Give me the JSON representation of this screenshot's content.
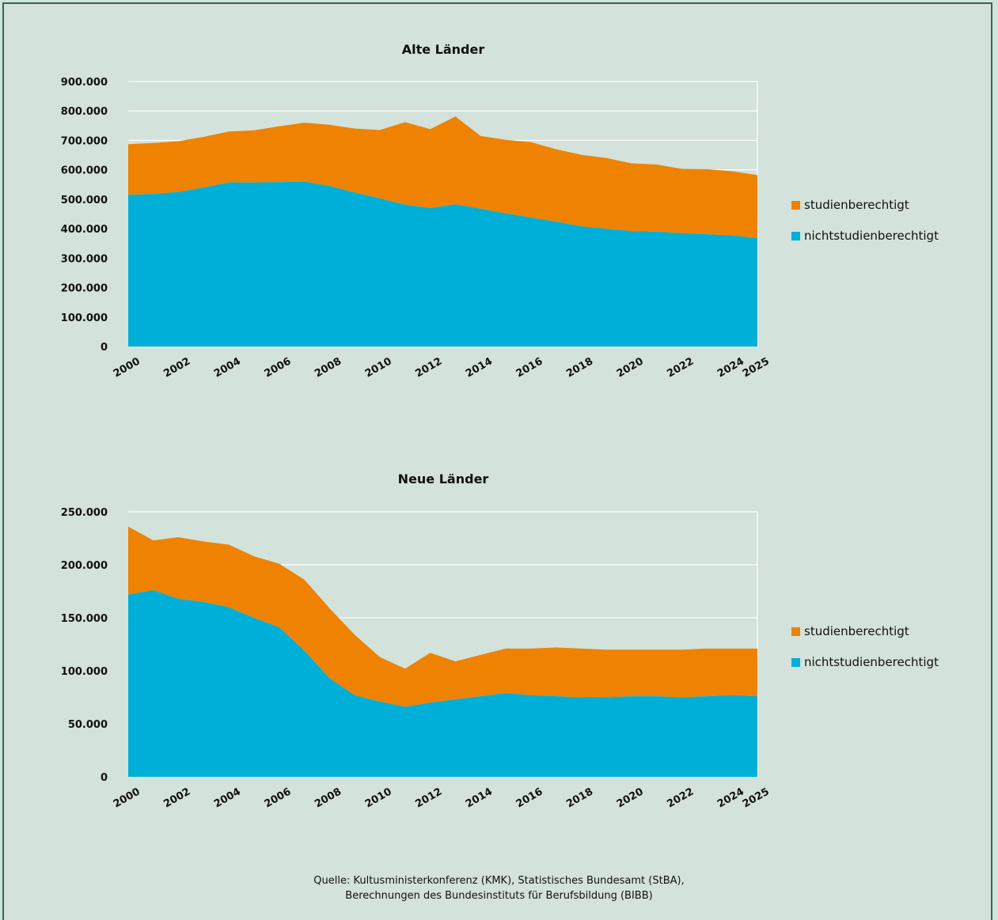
{
  "colors": {
    "studienberechtigt": "#ef8200",
    "nichtstudienberechtigt": "#00afd7",
    "background": "#d3e2da",
    "frame": "#2c6b4f"
  },
  "chart_data": [
    {
      "type": "area",
      "stacked": true,
      "title": "Alte Länder",
      "x": [
        2000,
        2001,
        2002,
        2003,
        2004,
        2005,
        2006,
        2007,
        2008,
        2009,
        2010,
        2011,
        2012,
        2013,
        2014,
        2015,
        2016,
        2017,
        2018,
        2019,
        2020,
        2021,
        2022,
        2023,
        2024,
        2025
      ],
      "x_tick_labels": [
        "2000",
        "2002",
        "2004",
        "2006",
        "2008",
        "2010",
        "2012",
        "2014",
        "2016",
        "2018",
        "2020",
        "2022",
        "2024",
        "2025"
      ],
      "y_tick_labels": [
        "900.000",
        "800.000",
        "700.000",
        "600.000",
        "500.000",
        "400.000",
        "300.000",
        "200.000",
        "100.000",
        "0"
      ],
      "ylim": [
        0,
        900000
      ],
      "legend_position": "right",
      "grid": true,
      "series": [
        {
          "name": "nichtstudienberechtigt",
          "values": [
            515000,
            518000,
            525000,
            540000,
            557000,
            557000,
            558000,
            560000,
            545000,
            523000,
            503000,
            482000,
            470000,
            483000,
            468000,
            452000,
            438000,
            424000,
            408000,
            400000,
            392000,
            390000,
            385000,
            381000,
            377000,
            368000
          ]
        },
        {
          "name": "studienberechtigt",
          "values": [
            172000,
            173000,
            172000,
            172000,
            173000,
            177000,
            190000,
            200000,
            208000,
            217000,
            232000,
            280000,
            268000,
            298000,
            247000,
            250000,
            256000,
            246000,
            243000,
            240000,
            230000,
            228000,
            218000,
            221000,
            218000,
            214000
          ]
        }
      ]
    },
    {
      "type": "area",
      "stacked": true,
      "title": "Neue Länder",
      "x": [
        2000,
        2001,
        2002,
        2003,
        2004,
        2005,
        2006,
        2007,
        2008,
        2009,
        2010,
        2011,
        2012,
        2013,
        2014,
        2015,
        2016,
        2017,
        2018,
        2019,
        2020,
        2021,
        2022,
        2023,
        2024,
        2025
      ],
      "x_tick_labels": [
        "2000",
        "2002",
        "2004",
        "2006",
        "2008",
        "2010",
        "2012",
        "2014",
        "2016",
        "2018",
        "2020",
        "2022",
        "2024",
        "2025"
      ],
      "y_tick_labels": [
        "250.000",
        "200.000",
        "150.000",
        "100.000",
        "50.000",
        "0"
      ],
      "ylim": [
        0,
        250000
      ],
      "legend_position": "right",
      "grid": true,
      "series": [
        {
          "name": "nichtstudienberechtigt",
          "values": [
            172000,
            176000,
            168000,
            165000,
            160000,
            150000,
            141000,
            119000,
            93000,
            77000,
            71000,
            66000,
            70000,
            73000,
            76000,
            79000,
            77000,
            76000,
            75000,
            75000,
            76000,
            76000,
            75000,
            76000,
            77000,
            76000
          ]
        },
        {
          "name": "studienberechtigt",
          "values": [
            64000,
            47000,
            58000,
            57000,
            59000,
            58000,
            60000,
            67000,
            66000,
            57000,
            42000,
            36000,
            47000,
            36000,
            39000,
            42000,
            44000,
            46000,
            46000,
            45000,
            44000,
            44000,
            45000,
            45000,
            44000,
            45000
          ]
        }
      ]
    }
  ],
  "source": {
    "line1": "Quelle: Kultusministerkonferenz (KMK), Statistisches Bundesamt (StBA),",
    "line2": "Berechnungen des Bundesinstituts für Berufsbildung (BIBB)"
  }
}
